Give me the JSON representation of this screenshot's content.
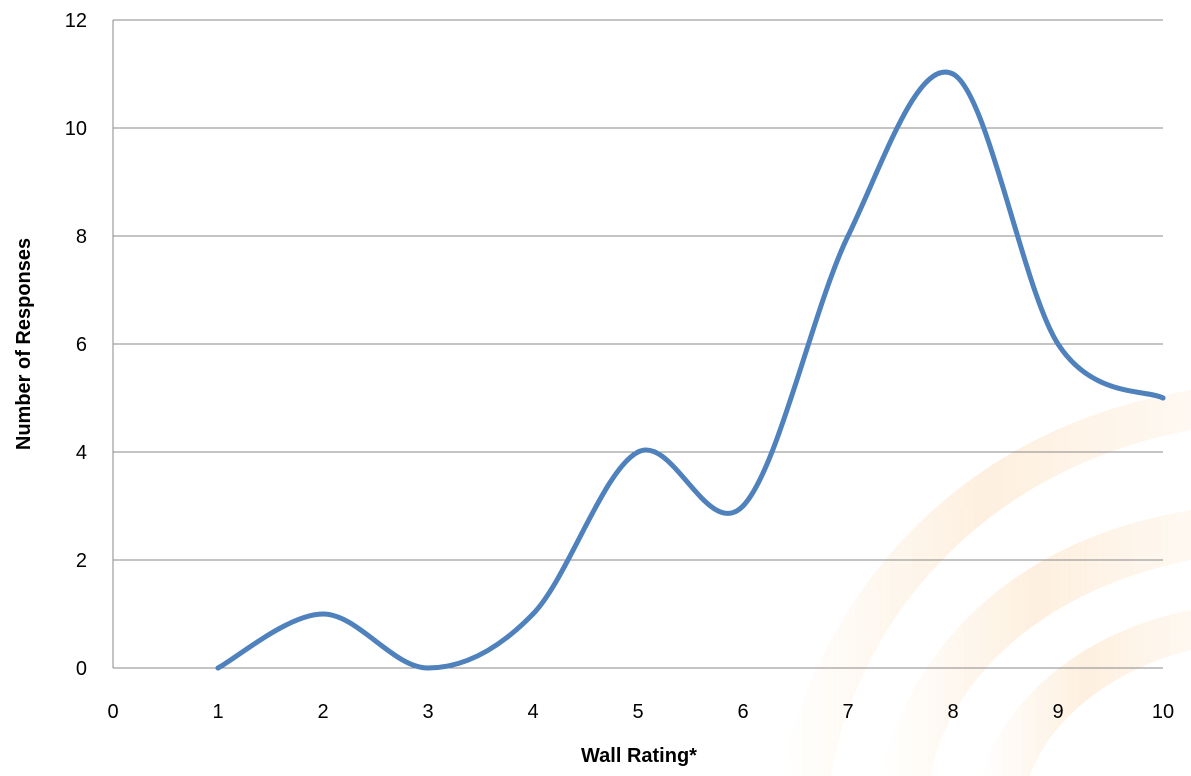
{
  "chart_data": {
    "type": "line",
    "title": "",
    "xlabel": "Wall Rating*",
    "ylabel": "Number of Responses",
    "xlim": [
      0,
      10
    ],
    "ylim": [
      0,
      12
    ],
    "x_ticks": [
      "0",
      "1",
      "2",
      "3",
      "4",
      "5",
      "6",
      "7",
      "8",
      "9",
      "10"
    ],
    "y_ticks": [
      "0",
      "2",
      "4",
      "6",
      "8",
      "10",
      "12"
    ],
    "grid": "horizontal",
    "smooth": true,
    "series": [
      {
        "x": [
          1,
          2,
          3,
          4,
          5,
          6,
          7,
          8,
          9,
          10
        ],
        "values": [
          0,
          1,
          0,
          1,
          4,
          3,
          8,
          11,
          6,
          5
        ],
        "color": "#4F81BD"
      }
    ],
    "gridline_color": "#888888",
    "background_decoration_color": "#F7B05A"
  }
}
